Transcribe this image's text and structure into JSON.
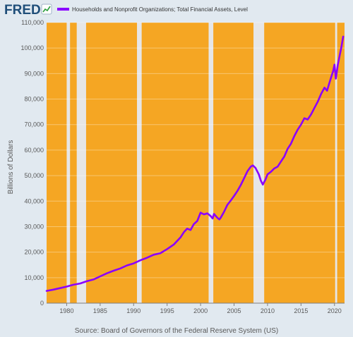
{
  "header": {
    "logo": "FRED",
    "legend_label": "Households and Nonprofit Organizations; Total Financial Assets, Level",
    "legend_color": "#8b00ff"
  },
  "footer": {
    "source": "Source: Board of Governors of the Federal Reserve System (US)"
  },
  "chart_data": {
    "type": "line",
    "title": "",
    "ylabel": "Billions of Dollars",
    "xlabel": "",
    "xlim": [
      1977.0,
      2021.5
    ],
    "ylim": [
      0,
      110000
    ],
    "x_ticks": [
      1980,
      1985,
      1990,
      1995,
      2000,
      2005,
      2010,
      2015,
      2020
    ],
    "y_ticks": [
      0,
      10000,
      20000,
      30000,
      40000,
      50000,
      60000,
      70000,
      80000,
      90000,
      100000,
      110000
    ],
    "y_tick_labels": [
      "0",
      "10,000",
      "20,000",
      "30,000",
      "40,000",
      "50,000",
      "60,000",
      "70,000",
      "80,000",
      "90,000",
      "100,000",
      "110,000"
    ],
    "grid": true,
    "background_color": "#f5a623",
    "recession_band_color": "#e6e6e6",
    "recessions": [
      [
        1980.0,
        1980.5
      ],
      [
        1981.5,
        1982.9
      ],
      [
        1990.5,
        1991.2
      ],
      [
        2001.2,
        2001.9
      ],
      [
        2007.9,
        2009.5
      ],
      [
        2020.1,
        2020.4
      ]
    ],
    "series": [
      {
        "name": "Households and Nonprofit Organizations; Total Financial Assets, Level",
        "color": "#8b00ff",
        "points": [
          [
            1977.0,
            4800
          ],
          [
            1978.0,
            5300
          ],
          [
            1979.0,
            5900
          ],
          [
            1980.0,
            6500
          ],
          [
            1981.0,
            7200
          ],
          [
            1982.0,
            7700
          ],
          [
            1983.0,
            8600
          ],
          [
            1984.0,
            9300
          ],
          [
            1985.0,
            10500
          ],
          [
            1986.0,
            11700
          ],
          [
            1987.0,
            12700
          ],
          [
            1988.0,
            13600
          ],
          [
            1989.0,
            14800
          ],
          [
            1990.0,
            15600
          ],
          [
            1991.0,
            16800
          ],
          [
            1992.0,
            17800
          ],
          [
            1993.0,
            19000
          ],
          [
            1994.0,
            19600
          ],
          [
            1995.0,
            21200
          ],
          [
            1996.0,
            23000
          ],
          [
            1997.0,
            25800
          ],
          [
            1997.5,
            27800
          ],
          [
            1998.0,
            29200
          ],
          [
            1998.5,
            28700
          ],
          [
            1999.0,
            31000
          ],
          [
            1999.5,
            32200
          ],
          [
            2000.0,
            35500
          ],
          [
            2000.5,
            34800
          ],
          [
            2001.0,
            35200
          ],
          [
            2001.5,
            34200
          ],
          [
            2001.8,
            33200
          ],
          [
            2002.0,
            35000
          ],
          [
            2002.5,
            33500
          ],
          [
            2002.8,
            32800
          ],
          [
            2003.0,
            33500
          ],
          [
            2003.5,
            35800
          ],
          [
            2004.0,
            38500
          ],
          [
            2004.5,
            40200
          ],
          [
            2005.0,
            42000
          ],
          [
            2005.5,
            44000
          ],
          [
            2006.0,
            46300
          ],
          [
            2006.5,
            49000
          ],
          [
            2007.0,
            51700
          ],
          [
            2007.5,
            53500
          ],
          [
            2007.8,
            54000
          ],
          [
            2008.2,
            53000
          ],
          [
            2008.7,
            50500
          ],
          [
            2009.0,
            48000
          ],
          [
            2009.3,
            46500
          ],
          [
            2009.7,
            48500
          ],
          [
            2010.0,
            50500
          ],
          [
            2010.5,
            51500
          ],
          [
            2011.0,
            52800
          ],
          [
            2011.5,
            53500
          ],
          [
            2012.0,
            55500
          ],
          [
            2012.5,
            57500
          ],
          [
            2013.0,
            60500
          ],
          [
            2013.5,
            62500
          ],
          [
            2014.0,
            65500
          ],
          [
            2014.5,
            68000
          ],
          [
            2015.0,
            70000
          ],
          [
            2015.5,
            72500
          ],
          [
            2016.0,
            72000
          ],
          [
            2016.5,
            74000
          ],
          [
            2017.0,
            76500
          ],
          [
            2017.5,
            79000
          ],
          [
            2018.0,
            82000
          ],
          [
            2018.5,
            84500
          ],
          [
            2018.9,
            83300
          ],
          [
            2019.2,
            86000
          ],
          [
            2019.5,
            88500
          ],
          [
            2019.8,
            91000
          ],
          [
            2020.0,
            93500
          ],
          [
            2020.2,
            88000
          ],
          [
            2020.5,
            93500
          ],
          [
            2020.8,
            97500
          ],
          [
            2021.0,
            100000
          ],
          [
            2021.3,
            104500
          ]
        ]
      }
    ]
  }
}
